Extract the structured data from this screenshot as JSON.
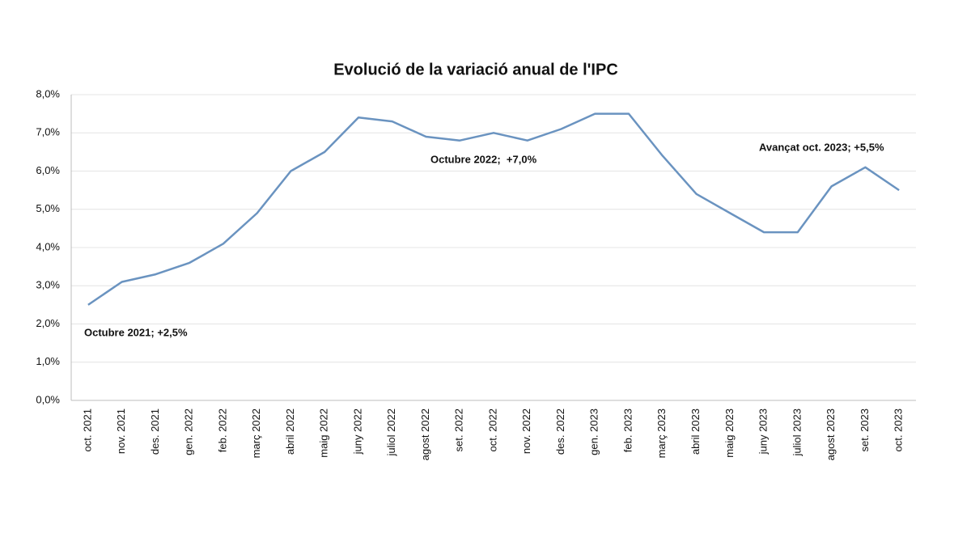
{
  "chart_data": {
    "type": "line",
    "title": "Evolució de la variació anual de l'IPC",
    "categories": [
      "oct. 2021",
      "nov. 2021",
      "des. 2021",
      "gen. 2022",
      "feb. 2022",
      "març 2022",
      "abril 2022",
      "maig 2022",
      "juny 2022",
      "juliol 2022",
      "agost 2022",
      "set. 2022",
      "oct. 2022",
      "nov. 2022",
      "des. 2022",
      "gen. 2023",
      "feb. 2023",
      "març 2023",
      "abril 2023",
      "maig 2023",
      "juny 2023",
      "juliol 2023",
      "agost 2023",
      "set. 2023",
      "oct. 2023"
    ],
    "values": [
      2.5,
      3.1,
      3.3,
      3.6,
      4.1,
      4.9,
      6.0,
      6.5,
      7.4,
      7.3,
      6.9,
      6.8,
      7.0,
      6.8,
      7.1,
      7.5,
      7.5,
      6.4,
      5.4,
      4.9,
      4.4,
      4.4,
      5.6,
      6.1,
      5.5
    ],
    "color": "#6a93c0",
    "ylim": [
      0,
      8
    ],
    "yticks": [
      {
        "value": 0,
        "label": "0,0%"
      },
      {
        "value": 1,
        "label": "1,0%"
      },
      {
        "value": 2,
        "label": "2,0%"
      },
      {
        "value": 3,
        "label": "3,0%"
      },
      {
        "value": 4,
        "label": "4,0%"
      },
      {
        "value": 5,
        "label": "5,0%"
      },
      {
        "value": 6,
        "label": "6,0%"
      },
      {
        "value": 7,
        "label": "7,0%"
      },
      {
        "value": 8,
        "label": "8,0%"
      }
    ],
    "grid": true,
    "annotations": [
      "Octubre 2021; +2,5%",
      "Octubre 2022;  +7,0%",
      "Avançat oct. 2023; +5,5%"
    ]
  }
}
